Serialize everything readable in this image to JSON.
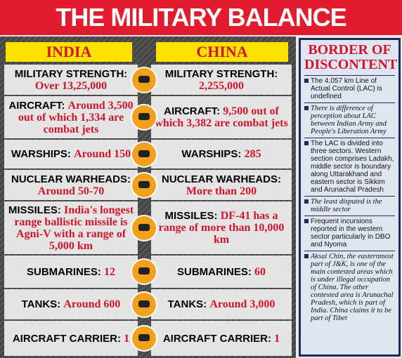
{
  "title": "THE MILITARY BALANCE",
  "columns": [
    "INDIA",
    "CHINA"
  ],
  "rows": [
    {
      "label": "MILITARY STRENGTH:",
      "india": "Over 13,25,000",
      "china": "2,255,000"
    },
    {
      "label": "AIRCRAFT:",
      "india": "Around 3,500 out of which 1,334 are combat jets",
      "china": "9,500 out of which 3,382 are combat jets"
    },
    {
      "label": "WARSHIPS:",
      "india": "Around 150",
      "china": "285"
    },
    {
      "label": "NUCLEAR WARHEADS:",
      "india": "Around 50-70",
      "china": "More than 200"
    },
    {
      "label": "MISSILES:",
      "india": "India's longest range ballistic missile is Agni-V with a range of 5,000 km",
      "china": "DF-41 has a range of more than 10,000 km"
    },
    {
      "label": "SUBMARINES:",
      "india": "12",
      "china": "60"
    },
    {
      "label": "TANKS:",
      "india": "Around 600",
      "china": "Around 3,000"
    },
    {
      "label": "AIRCRAFT CARRIER:",
      "india": "1",
      "china": "1"
    }
  ],
  "sidebar": {
    "title": "BORDER OF DISCONTENT",
    "items": [
      "The 4,057 km Line of Actual Control (LAC) is undefined",
      "There is difference of perception about LAC between Indian Army and People's Liberation Army",
      "The LAC is divided into three sectors. Western section comprises Ladakh, middle sector is boundary along Uttarakhand and eastern sector is Sikkim and Arunachal Pradesh",
      "The least disputed is the middle sector",
      "Frequent incursions reported in the western sector particularly in DBO and Nyoma",
      "Aksai Chin, the easternmost part of J&K, is one of the main contested areas which is under illegal occupation of China. The other contested area is Arunachal Pradesh, which is part of India. China claims it to be part of Tibet"
    ]
  }
}
